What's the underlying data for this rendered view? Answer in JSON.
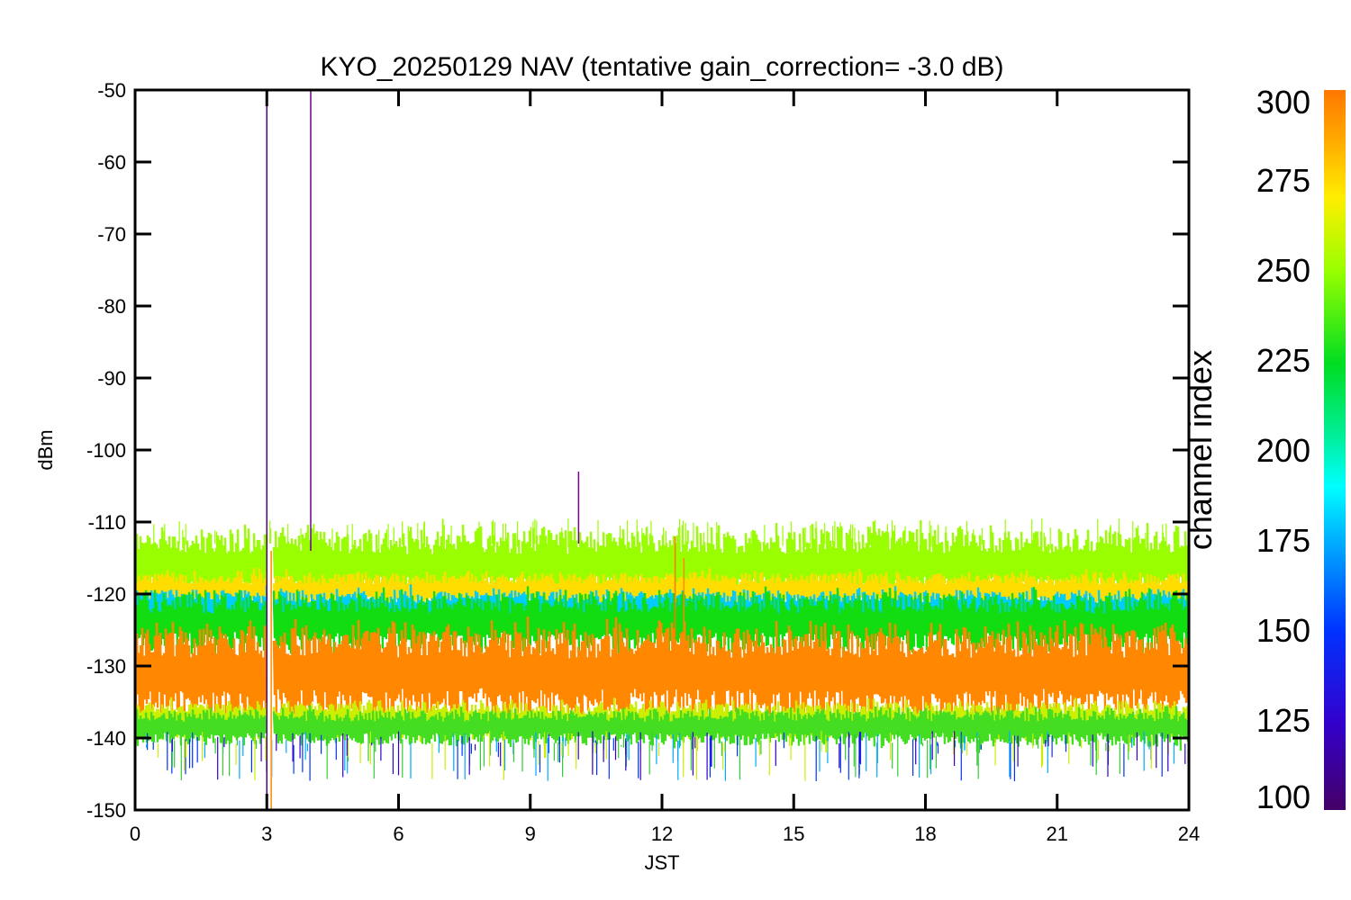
{
  "chart_data": {
    "type": "line",
    "title": "KYO_20250129 NAV (tentative gain_correction= -3.0 dB)",
    "xlabel": "JST",
    "ylabel": "dBm",
    "xlim": [
      0,
      24
    ],
    "ylim": [
      -150,
      -50
    ],
    "x_ticks": [
      "0",
      "3",
      "6",
      "9",
      "12",
      "15",
      "18",
      "21",
      "24"
    ],
    "y_ticks": [
      "-50",
      "-60",
      "-70",
      "-80",
      "-90",
      "-100",
      "-110",
      "-120",
      "-130",
      "-140",
      "-150"
    ],
    "grid": false,
    "colorbar": {
      "label": "channel index",
      "range": [
        100,
        300
      ],
      "ticks": [
        "300",
        "275",
        "250",
        "225",
        "200",
        "175",
        "150",
        "125",
        "100"
      ]
    },
    "bands": [
      {
        "channel_index": 250,
        "center_dBm": -116,
        "spread_dB": 3,
        "color": "#99ff00"
      },
      {
        "channel_index": 270,
        "center_dBm": -119.5,
        "spread_dB": 1.5,
        "color": "#ffdd00"
      },
      {
        "channel_index": 180,
        "center_dBm": -122,
        "spread_dB": 1.5,
        "color": "#00ccff"
      },
      {
        "channel_index": 225,
        "center_dBm": -124,
        "spread_dB": 2.5,
        "color": "#11dd11"
      },
      {
        "channel_index": 290,
        "center_dBm": -131,
        "spread_dB": 4,
        "color": "#ff8800"
      },
      {
        "channel_index": 260,
        "center_dBm": -137.5,
        "spread_dB": 1.5,
        "color": "#ccee00"
      },
      {
        "channel_index": 240,
        "center_dBm": -138.5,
        "spread_dB": 1.5,
        "color": "#44dd22"
      }
    ],
    "spikes": [
      {
        "x": 3.0,
        "y_top": -50,
        "y_bottom": -150,
        "color": "#550088"
      },
      {
        "x": 4.0,
        "y_top": -50,
        "y_bottom": -114,
        "color": "#660099"
      },
      {
        "x": 10.1,
        "y_top": -103,
        "y_bottom": -113,
        "color": "#770099"
      },
      {
        "x": 3.1,
        "y_top": -114,
        "y_bottom": -150,
        "color": "#ff8800"
      },
      {
        "x": 12.3,
        "y_top": -112,
        "y_bottom": -126,
        "color": "#ff7700"
      },
      {
        "x": 12.5,
        "y_top": -115,
        "y_bottom": -128,
        "color": "#ff8800"
      }
    ],
    "data_gap": {
      "x_start": 3.0,
      "x_end": 3.12
    }
  }
}
